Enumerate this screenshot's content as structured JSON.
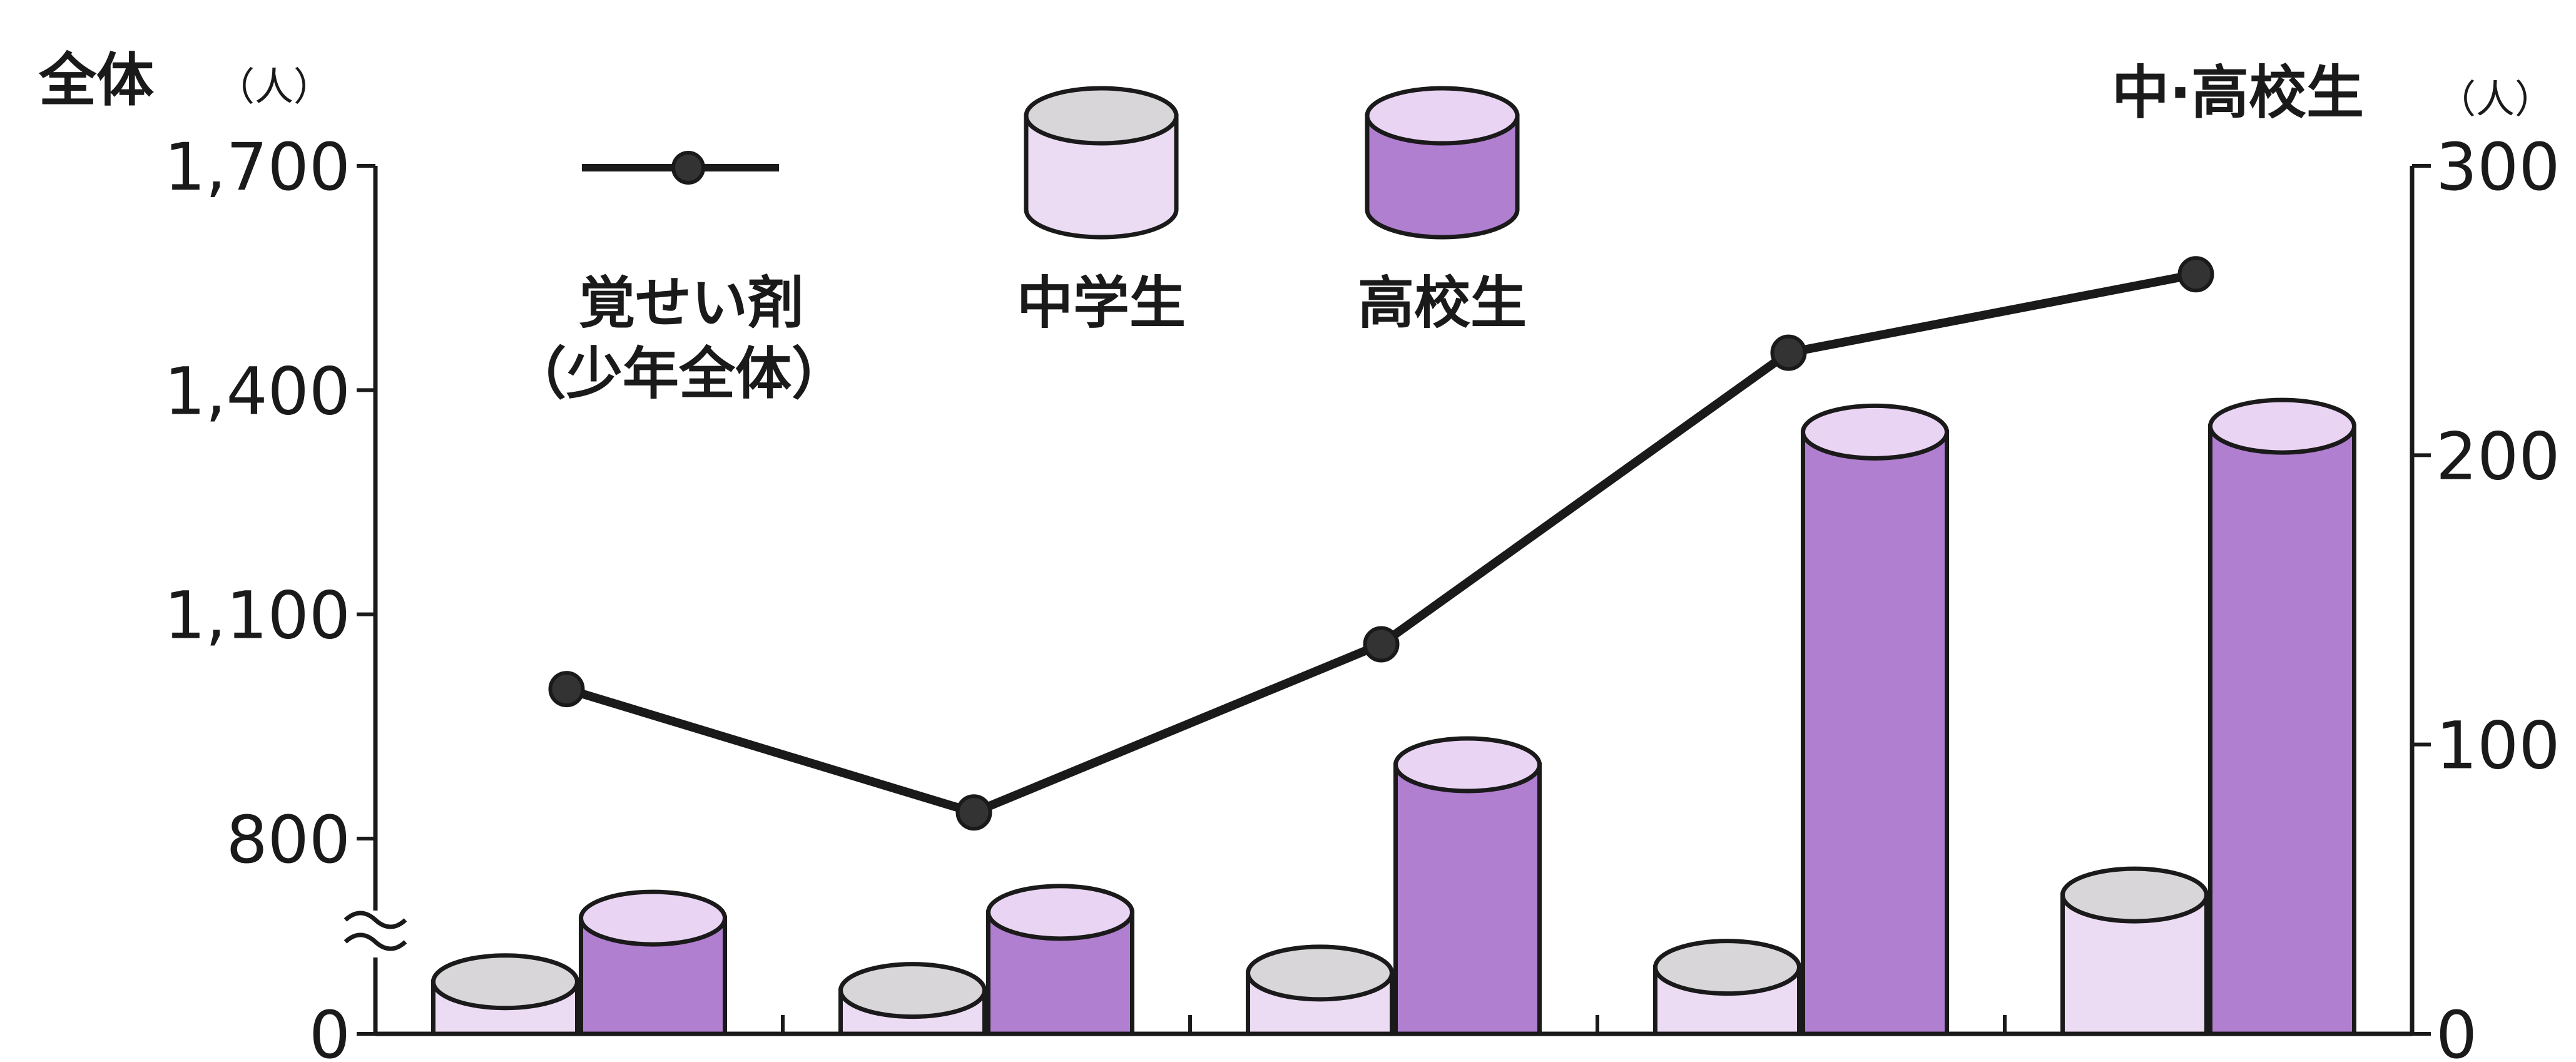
{
  "chart_data": {
    "type": "bar",
    "left_axis": {
      "title": "全体",
      "unit": "（人）",
      "ticks": [
        "1,700",
        "1,400",
        "1,100",
        "800",
        "0"
      ],
      "tick_values": [
        1700,
        1400,
        1100,
        800,
        0
      ],
      "broken": true,
      "range": [
        800,
        1700
      ]
    },
    "right_axis": {
      "title": "中·高校生",
      "unit": "（人）",
      "ticks": [
        "300",
        "200",
        "100",
        "0"
      ],
      "tick_values": [
        300,
        200,
        100,
        0
      ],
      "range": [
        0,
        300
      ]
    },
    "legend": {
      "line_label_1": "覚せい剤",
      "line_label_2": "（少年全体）",
      "junior_high": "中学生",
      "high_school": "高校生"
    },
    "categories": [
      "",
      "",
      "",
      "",
      ""
    ],
    "series": [
      {
        "name": "中学生",
        "type": "bar",
        "axis": "right",
        "values": [
          18,
          15,
          21,
          23,
          48
        ]
      },
      {
        "name": "高校生",
        "type": "bar",
        "axis": "right",
        "values": [
          40,
          42,
          93,
          208,
          210
        ]
      },
      {
        "name": "覚せい剤（少年全体）",
        "type": "line",
        "axis": "left",
        "values": [
          1000,
          835,
          1060,
          1450,
          1555
        ]
      }
    ],
    "colors": {
      "junior_high_body": "#ecdcf3",
      "junior_high_top": "#d9d6d9",
      "high_school_body": "#b07fcf",
      "high_school_top": "#ead4f3",
      "line": "#1a1a1a",
      "outline": "#1a1a1a"
    }
  }
}
